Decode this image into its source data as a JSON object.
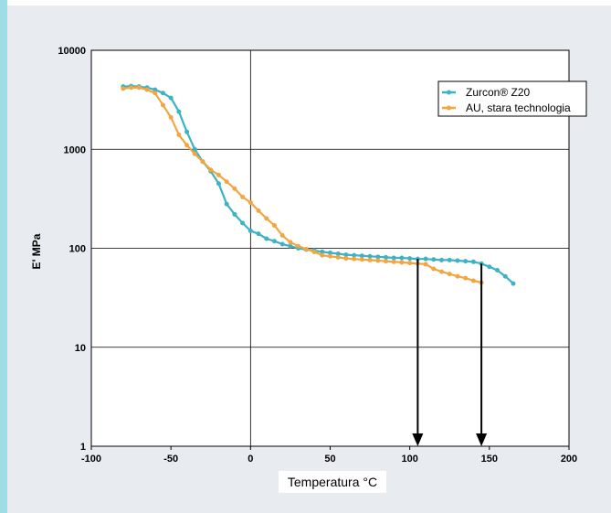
{
  "chart_data": {
    "type": "line",
    "title": "",
    "xlabel": "Temperatura °C",
    "ylabel": "E' MPa",
    "xlim": [
      -100,
      200
    ],
    "ylim": [
      1,
      10000
    ],
    "yscale": "log",
    "xticks": [
      -100,
      -50,
      0,
      50,
      100,
      150,
      200
    ],
    "yticks": [
      1,
      10,
      100,
      1000,
      10000
    ],
    "xtick_labels": [
      "-100",
      "-50",
      "0",
      "50",
      "100",
      "150",
      "200"
    ],
    "ytick_labels": [
      "1",
      "10",
      "100",
      "1000",
      "10000"
    ],
    "grid": true,
    "legend_position": "top-right",
    "series": [
      {
        "name": "Zurcon® Z20",
        "color": "#3cb2c4",
        "points": [
          [
            -80,
            4300
          ],
          [
            -75,
            4350
          ],
          [
            -70,
            4300
          ],
          [
            -65,
            4200
          ],
          [
            -60,
            4000
          ],
          [
            -55,
            3700
          ],
          [
            -50,
            3300
          ],
          [
            -45,
            2400
          ],
          [
            -40,
            1500
          ],
          [
            -35,
            1000
          ],
          [
            -30,
            750
          ],
          [
            -25,
            600
          ],
          [
            -20,
            450
          ],
          [
            -15,
            280
          ],
          [
            -10,
            220
          ],
          [
            -5,
            180
          ],
          [
            0,
            150
          ],
          [
            5,
            140
          ],
          [
            10,
            125
          ],
          [
            15,
            118
          ],
          [
            20,
            110
          ],
          [
            25,
            105
          ],
          [
            30,
            100
          ],
          [
            35,
            97
          ],
          [
            40,
            95
          ],
          [
            45,
            92
          ],
          [
            50,
            90
          ],
          [
            55,
            88
          ],
          [
            60,
            86
          ],
          [
            65,
            85
          ],
          [
            70,
            84
          ],
          [
            75,
            83
          ],
          [
            80,
            82
          ],
          [
            85,
            81
          ],
          [
            90,
            80
          ],
          [
            95,
            80
          ],
          [
            100,
            79
          ],
          [
            105,
            78
          ],
          [
            110,
            78
          ],
          [
            115,
            77
          ],
          [
            120,
            76
          ],
          [
            125,
            76
          ],
          [
            130,
            75
          ],
          [
            135,
            74
          ],
          [
            140,
            73
          ],
          [
            145,
            70
          ],
          [
            150,
            65
          ],
          [
            155,
            60
          ],
          [
            160,
            52
          ],
          [
            165,
            44
          ]
        ]
      },
      {
        "name": "AU, stara technologia",
        "color": "#f2a541",
        "points": [
          [
            -80,
            4100
          ],
          [
            -75,
            4200
          ],
          [
            -70,
            4200
          ],
          [
            -65,
            4000
          ],
          [
            -60,
            3700
          ],
          [
            -55,
            2800
          ],
          [
            -50,
            2100
          ],
          [
            -45,
            1400
          ],
          [
            -40,
            1100
          ],
          [
            -35,
            900
          ],
          [
            -30,
            750
          ],
          [
            -25,
            620
          ],
          [
            -20,
            550
          ],
          [
            -15,
            470
          ],
          [
            -10,
            400
          ],
          [
            -5,
            330
          ],
          [
            0,
            290
          ],
          [
            5,
            240
          ],
          [
            10,
            200
          ],
          [
            15,
            170
          ],
          [
            20,
            135
          ],
          [
            25,
            115
          ],
          [
            30,
            105
          ],
          [
            35,
            98
          ],
          [
            40,
            92
          ],
          [
            45,
            85
          ],
          [
            50,
            83
          ],
          [
            55,
            81
          ],
          [
            60,
            79
          ],
          [
            65,
            78
          ],
          [
            70,
            77
          ],
          [
            75,
            76
          ],
          [
            80,
            75
          ],
          [
            85,
            74
          ],
          [
            90,
            73
          ],
          [
            95,
            72
          ],
          [
            100,
            71
          ],
          [
            105,
            70
          ],
          [
            110,
            69
          ],
          [
            115,
            62
          ],
          [
            120,
            58
          ],
          [
            125,
            55
          ],
          [
            130,
            52
          ],
          [
            135,
            50
          ],
          [
            140,
            47
          ],
          [
            145,
            45
          ]
        ]
      }
    ],
    "annotations": [
      {
        "type": "arrow-down",
        "x": 105,
        "from_y": 78,
        "to_y": 1
      },
      {
        "type": "arrow-down",
        "x": 145,
        "from_y": 70,
        "to_y": 1
      }
    ]
  }
}
